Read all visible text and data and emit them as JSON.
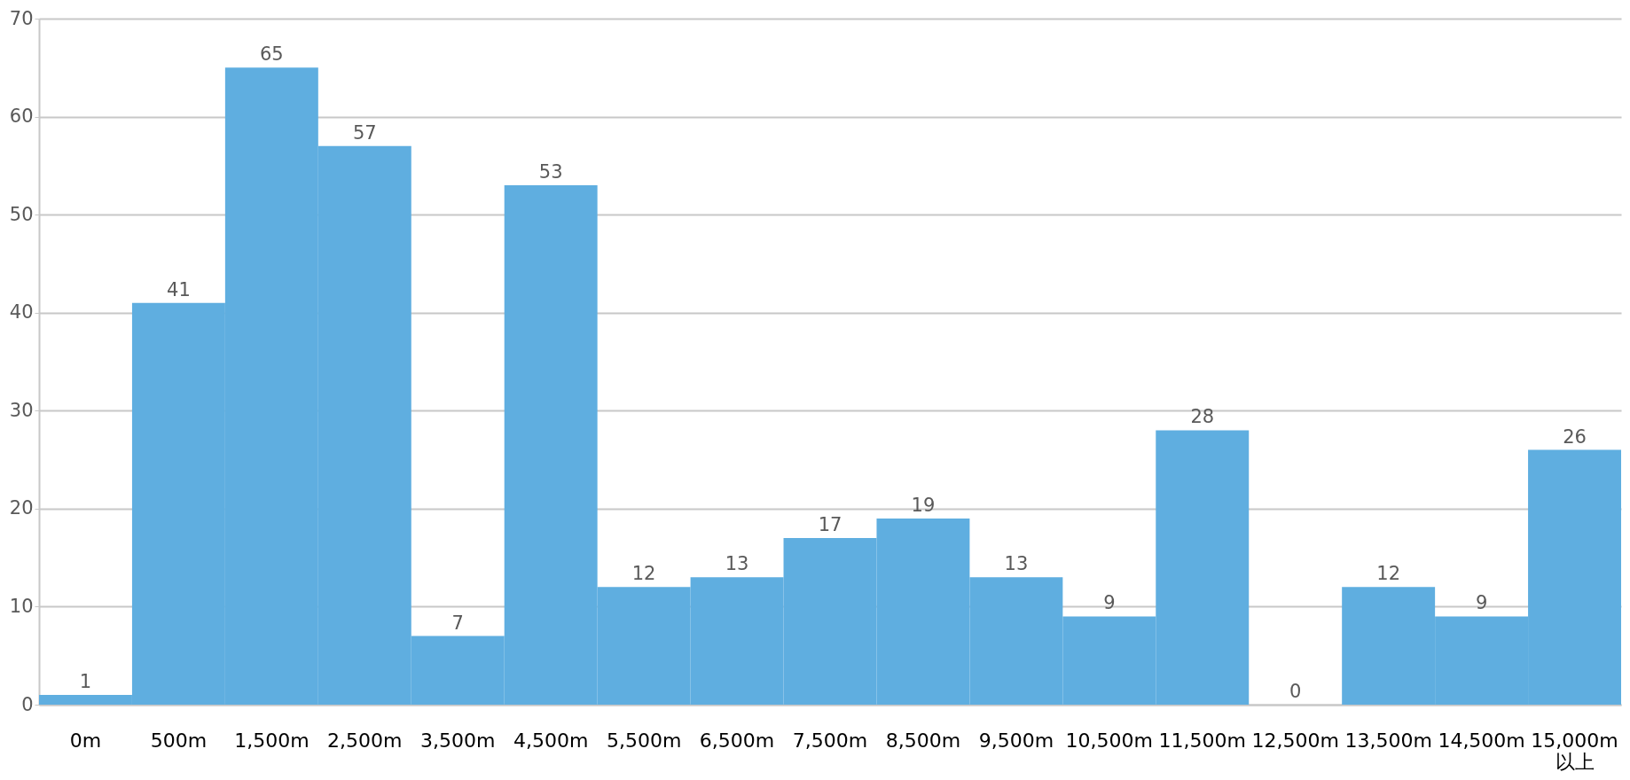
{
  "chart_data": {
    "type": "bar",
    "categories": [
      "0m",
      "500m",
      "1,500m",
      "2,500m",
      "3,500m",
      "4,500m",
      "5,500m",
      "6,500m",
      "7,500m",
      "8,500m",
      "9,500m",
      "10,500m",
      "11,500m",
      "12,500m",
      "13,500m",
      "14,500m",
      "15,000m\n以上"
    ],
    "values": [
      1,
      41,
      65,
      57,
      7,
      53,
      12,
      13,
      17,
      19,
      13,
      9,
      28,
      0,
      12,
      9,
      26
    ],
    "color": "#5faee0",
    "ylim": [
      0,
      70
    ],
    "yticks": [
      0,
      10,
      20,
      30,
      40,
      50,
      60,
      70
    ],
    "grid": "y",
    "data_labels": true
  }
}
